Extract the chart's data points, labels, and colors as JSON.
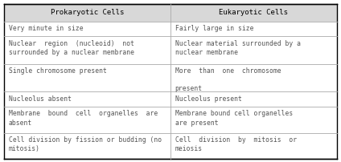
{
  "fig_width": 4.24,
  "fig_height": 2.02,
  "dpi": 100,
  "background_color": "#ffffff",
  "header_bg": "#d8d8d8",
  "header_text_color": "#000000",
  "cell_text_color": "#555555",
  "col1_header": "Prokaryotic Cells",
  "col2_header": "Eukaryotic Cells",
  "rows": [
    [
      "Very minute in size",
      "Fairly large in size"
    ],
    [
      "Nuclear  region  (nucleoid)  not\nsurrounded by a nuclear membrane",
      "Nuclear material surrounded by a\nnuclear membrane"
    ],
    [
      "Single chromosome present",
      "More  than  one  chromosome\n\npresent"
    ],
    [
      "Nucleolus absent",
      "Nucleolus present"
    ],
    [
      "Membrane  bound  cell  organelles  are\nabsent",
      "Membrane bound cell organelles\nare present"
    ],
    [
      "Cell division by fission or budding (no\nmitosis)",
      "Cell  division  by  mitosis  or\nmeiosis"
    ]
  ],
  "header_fontsize": 6.5,
  "cell_fontsize": 5.8,
  "line_color": "#aaaaaa",
  "outer_line_color": "#000000",
  "row_heights_rel": [
    1.15,
    1.0,
    1.85,
    1.85,
    1.0,
    1.75,
    1.75
  ]
}
